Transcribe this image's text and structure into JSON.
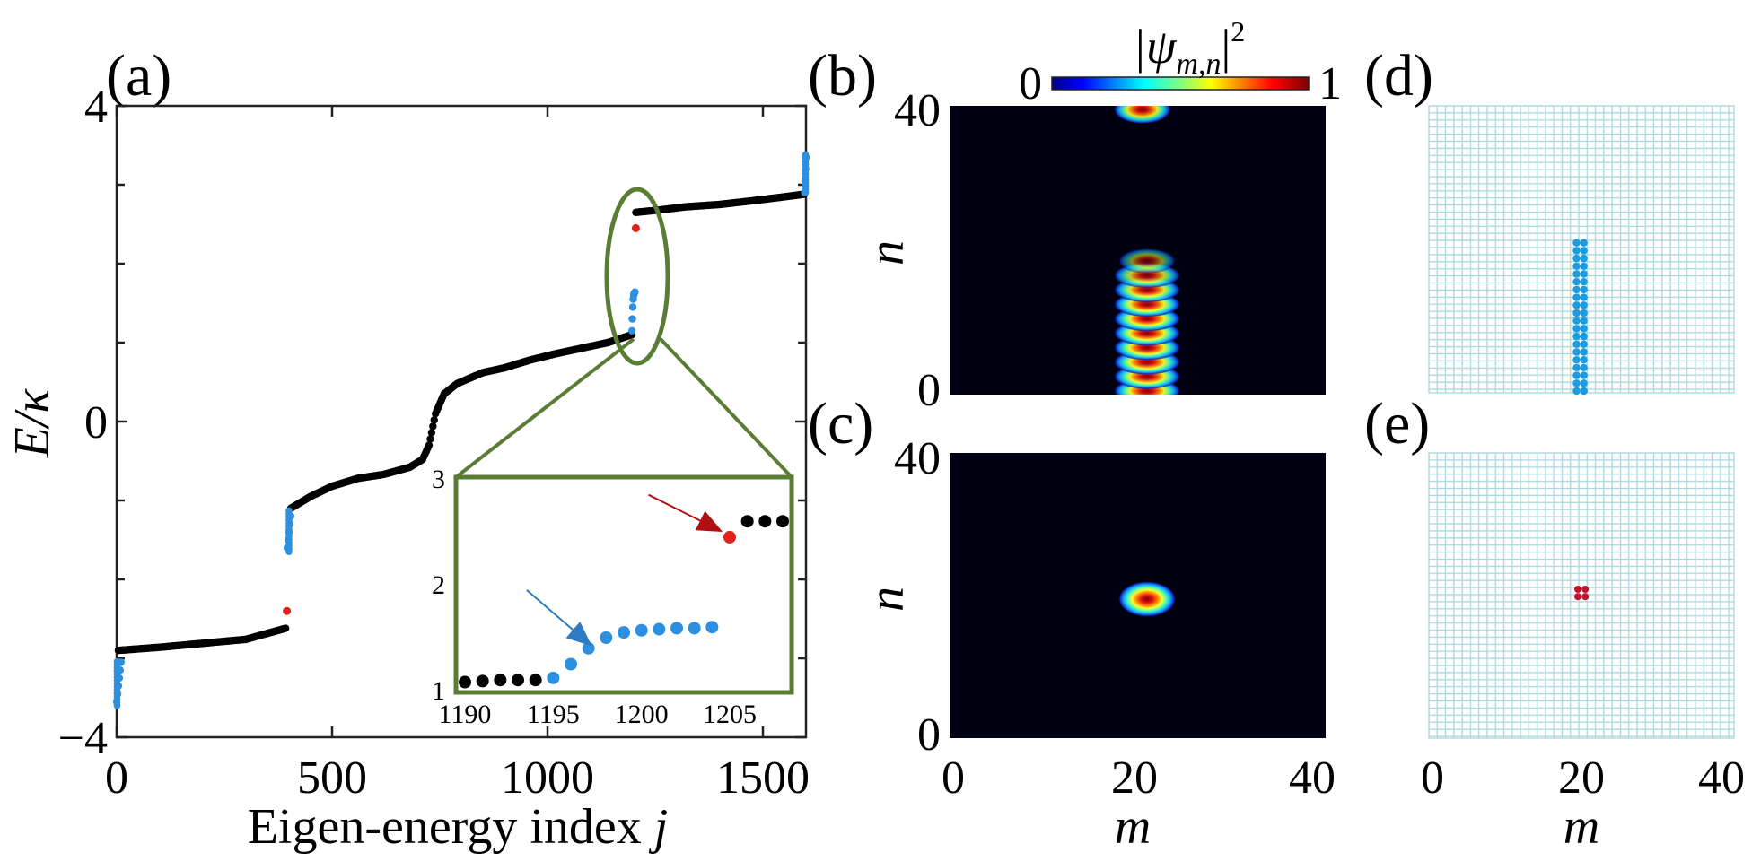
{
  "figure": {
    "panels": {
      "a": "(a)",
      "b": "(b)",
      "c": "(c)",
      "d": "(d)",
      "e": "(e)"
    }
  },
  "chart_data": [
    {
      "id": "a",
      "type": "scatter",
      "title": "",
      "xlabel": "Eigen-energy index ",
      "xlabel_var": "j",
      "ylabel": "E/κ",
      "xlim": [
        0,
        1600
      ],
      "ylim": [
        -4,
        4
      ],
      "xticks": [
        0,
        500,
        1000,
        1500
      ],
      "yticks": [
        -4,
        0,
        4
      ],
      "xticklabels": [
        "0",
        "500",
        "1000",
        "1500"
      ],
      "yticklabels": [
        "−4",
        "0",
        "4"
      ],
      "colors": {
        "bulk": "#000000",
        "edge": "#2d8fe0",
        "corner": "#e0211e",
        "highlight": "#5a7d36"
      },
      "series": [
        {
          "name": "bulk",
          "color": "#000000",
          "segments": [
            [
              [
                4,
                -2.9
              ],
              [
                100,
                -2.86
              ],
              [
                200,
                -2.81
              ],
              [
                300,
                -2.76
              ],
              [
                392,
                -2.62
              ]
            ],
            [
              [
                404,
                -1.1
              ],
              [
                450,
                -0.95
              ],
              [
                500,
                -0.82
              ],
              [
                560,
                -0.72
              ],
              [
                620,
                -0.67
              ],
              [
                680,
                -0.58
              ],
              [
                710,
                -0.48
              ],
              [
                725,
                -0.3
              ],
              [
                740,
                0.1
              ],
              [
                760,
                0.35
              ],
              [
                790,
                0.48
              ],
              [
                850,
                0.62
              ],
              [
                900,
                0.68
              ],
              [
                960,
                0.78
              ],
              [
                1020,
                0.86
              ],
              [
                1080,
                0.93
              ],
              [
                1140,
                1.0
              ],
              [
                1196,
                1.1
              ]
            ],
            [
              [
                1205,
                2.65
              ],
              [
                1260,
                2.68
              ],
              [
                1320,
                2.72
              ],
              [
                1400,
                2.75
              ],
              [
                1480,
                2.8
              ],
              [
                1540,
                2.84
              ],
              [
                1596,
                2.88
              ]
            ]
          ]
        },
        {
          "name": "edge",
          "color": "#2d8fe0",
          "points": [
            [
              0,
              -3.55
            ],
            [
              2,
              -3.45
            ],
            [
              4,
              -3.35
            ],
            [
              6,
              -3.25
            ],
            [
              8,
              -3.15
            ],
            [
              10,
              -3.05
            ],
            [
              396,
              -1.6
            ],
            [
              398,
              -1.5
            ],
            [
              400,
              -1.4
            ],
            [
              402,
              -1.3
            ],
            [
              404,
              -1.2
            ],
            [
              1196,
              1.15
            ],
            [
              1197,
              1.3
            ],
            [
              1198,
              1.45
            ],
            [
              1199,
              1.55
            ],
            [
              1200,
              1.6
            ],
            [
              1201,
              1.62
            ],
            [
              1202,
              1.63
            ],
            [
              1203,
              1.64
            ],
            [
              1597,
              2.9
            ],
            [
              1598,
              3.05
            ],
            [
              1599,
              3.2
            ],
            [
              1600,
              3.35
            ]
          ]
        },
        {
          "name": "corner",
          "color": "#e0211e",
          "points": [
            [
              395,
              -2.4
            ],
            [
              1205,
              2.45
            ]
          ]
        }
      ],
      "inset": {
        "xlim": [
          1190,
          1208
        ],
        "ylim": [
          1,
          3
        ],
        "xticks": [
          1190,
          1195,
          1200,
          1205
        ],
        "yticks": [
          1,
          2,
          3
        ],
        "xticklabels": [
          "1190",
          "1195",
          "1200",
          "1205"
        ],
        "yticklabels": [
          "1",
          "2",
          "3"
        ],
        "bulk": [
          [
            1190,
            1.08
          ],
          [
            1191,
            1.09
          ],
          [
            1192,
            1.1
          ],
          [
            1193,
            1.1
          ],
          [
            1194,
            1.1
          ],
          [
            1206,
            2.6
          ],
          [
            1207,
            2.6
          ],
          [
            1208,
            2.6
          ]
        ],
        "edge": [
          [
            1195,
            1.12
          ],
          [
            1196,
            1.25
          ],
          [
            1197,
            1.4
          ],
          [
            1198,
            1.5
          ],
          [
            1199,
            1.55
          ],
          [
            1200,
            1.57
          ],
          [
            1201,
            1.58
          ],
          [
            1202,
            1.59
          ],
          [
            1203,
            1.59
          ],
          [
            1204,
            1.6
          ]
        ],
        "corner": [
          [
            1205,
            2.45
          ]
        ],
        "arrows": [
          {
            "color": "#2d7bc4",
            "from": [
              1193.5,
              1.95
            ],
            "to": [
              1197.2,
              1.42
            ]
          },
          {
            "color": "#b01010",
            "from": [
              1200.4,
              2.85
            ],
            "to": [
              1204.6,
              2.5
            ]
          }
        ]
      }
    },
    {
      "id": "b",
      "type": "heatmap",
      "xlabel": "",
      "ylabel": "n",
      "xlim": [
        0,
        40
      ],
      "ylim": [
        0,
        40
      ],
      "yticklabels": [
        "0",
        "40"
      ],
      "colorbar": {
        "label_base": "|ψ",
        "label_sub": "m,n",
        "label_end": "|",
        "label_sup": "2",
        "min": "0",
        "max": "1"
      },
      "blobs": [
        {
          "m": 20.5,
          "n": 39.5,
          "width": 5,
          "height": 2.5,
          "peak": 0.9
        },
        {
          "m": 21,
          "n": 0.5,
          "width": 6,
          "height": 2,
          "peak": 0.95
        },
        {
          "m": 21,
          "n": 2.5,
          "width": 6,
          "height": 2,
          "peak": 0.95
        },
        {
          "m": 21,
          "n": 4.5,
          "width": 6,
          "height": 2,
          "peak": 0.95
        },
        {
          "m": 21,
          "n": 6.5,
          "width": 6,
          "height": 2,
          "peak": 0.95
        },
        {
          "m": 21,
          "n": 8.5,
          "width": 6,
          "height": 2,
          "peak": 0.95
        },
        {
          "m": 21,
          "n": 10.5,
          "width": 6,
          "height": 2,
          "peak": 0.95
        },
        {
          "m": 21,
          "n": 12.5,
          "width": 6,
          "height": 2,
          "peak": 0.95
        },
        {
          "m": 21,
          "n": 14.5,
          "width": 6,
          "height": 2,
          "peak": 0.9
        },
        {
          "m": 21,
          "n": 16.5,
          "width": 6,
          "height": 2,
          "peak": 0.8
        },
        {
          "m": 21,
          "n": 18.5,
          "width": 5,
          "height": 2,
          "peak": 0.55
        }
      ]
    },
    {
      "id": "c",
      "type": "heatmap",
      "xlabel": "m",
      "ylabel": "n",
      "xlim": [
        0,
        40
      ],
      "ylim": [
        0,
        40
      ],
      "xticklabels": [
        "0",
        "20",
        "40"
      ],
      "yticklabels": [
        "0",
        "40"
      ],
      "blobs": [
        {
          "m": 21,
          "n": 19.5,
          "width": 5,
          "height": 3.5,
          "peak": 1.0
        }
      ]
    },
    {
      "id": "d",
      "type": "scatter",
      "xlabel": "",
      "grid": "41x41 lattice",
      "lattice_color": "#a9d8dd",
      "marker_color": "#1b9be0",
      "columns": [
        20,
        21
      ],
      "n_range": [
        0,
        19
      ]
    },
    {
      "id": "e",
      "type": "scatter",
      "xlabel": "m",
      "xlim": [
        0,
        40
      ],
      "xticklabels": [
        "0",
        "20",
        "40"
      ],
      "grid": "41x41 lattice",
      "lattice_color": "#a9d8dd",
      "marker_color": "#c8102e",
      "points": [
        [
          20,
          19
        ],
        [
          21,
          19
        ],
        [
          20,
          20
        ],
        [
          21,
          20
        ]
      ]
    }
  ]
}
